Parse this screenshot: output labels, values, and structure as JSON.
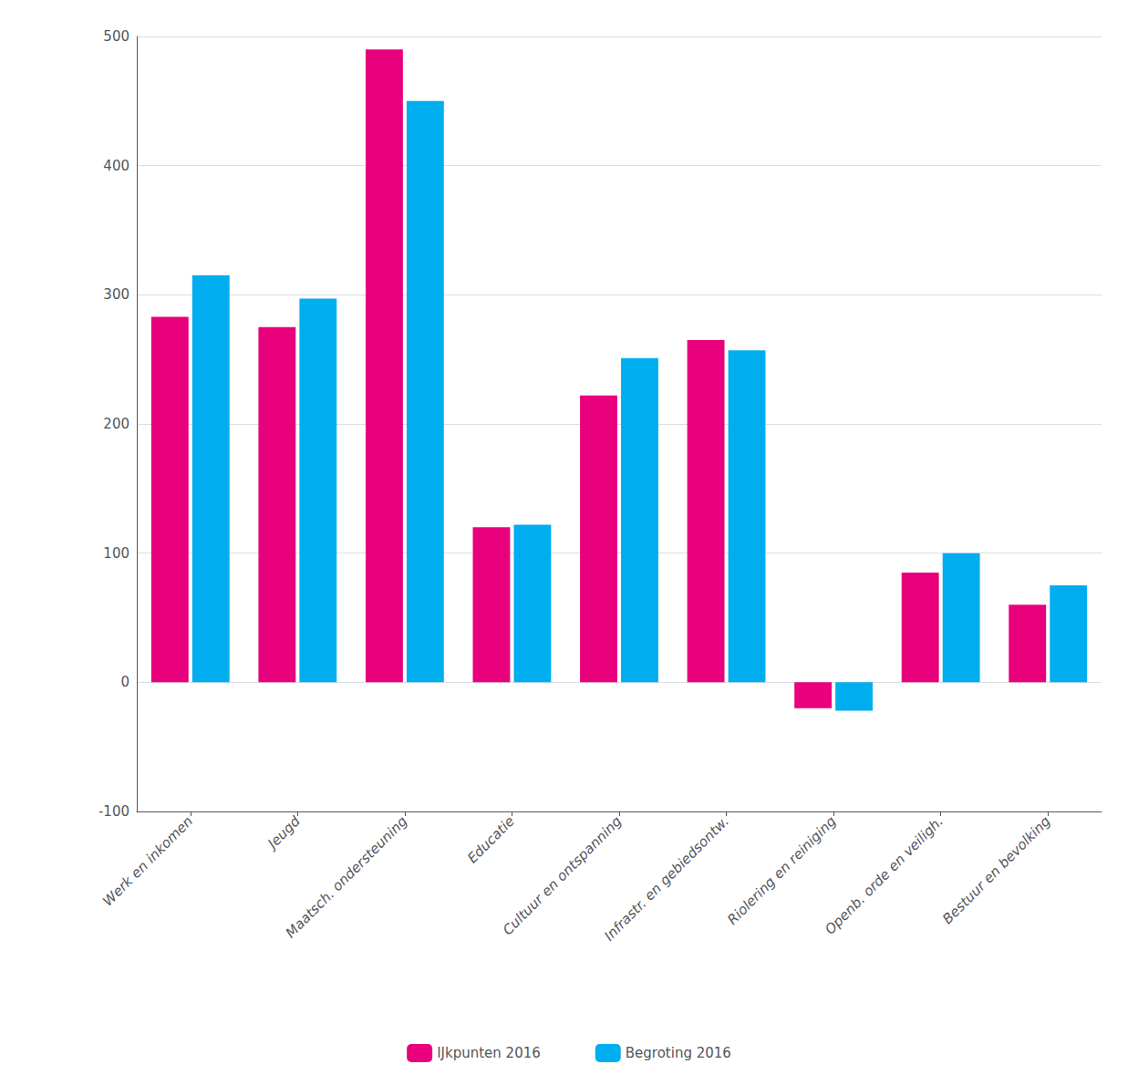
{
  "chart_data": {
    "type": "bar",
    "categories": [
      "Werk en inkomen",
      "Jeugd",
      "Maatsch. ondersteuning",
      "Educatie",
      "Cultuur en ontspanning",
      "Infrastr. en gebiedsontw.",
      "Riolering en reiniging",
      "Openb. orde en veiligh.",
      "Bestuur en bevolking"
    ],
    "series": [
      {
        "name": "IJkpunten 2016",
        "color": "#E8007C",
        "values": [
          283,
          275,
          490,
          120,
          222,
          265,
          -20,
          85,
          60
        ]
      },
      {
        "name": "Begroting 2016",
        "color": "#00AEEF",
        "values": [
          315,
          297,
          450,
          122,
          251,
          257,
          -22,
          100,
          75
        ]
      }
    ],
    "ylim": [
      -100,
      500
    ],
    "yticks": [
      -100,
      0,
      100,
      200,
      300,
      400,
      500
    ],
    "grid": true,
    "legend": "bottom"
  }
}
